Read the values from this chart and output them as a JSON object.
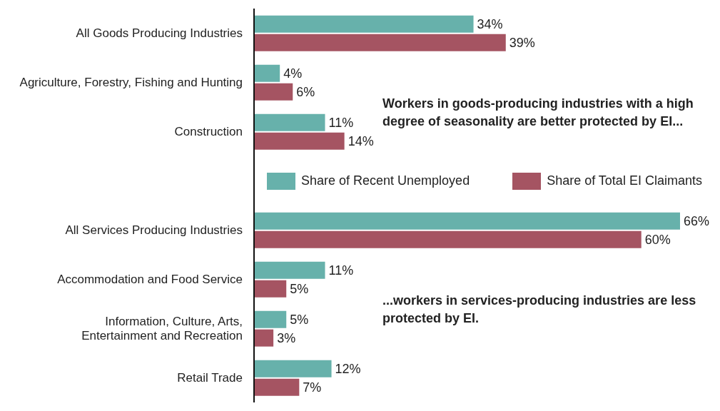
{
  "chart_data": {
    "type": "bar",
    "orientation": "horizontal",
    "legend": "right",
    "categories": [
      "All Goods Producing Industries",
      "Agriculture, Forestry, Fishing and Hunting",
      "Construction",
      null,
      "All Services Producing Industries",
      "Accommodation and Food Service",
      "Information, Culture, Arts, Entertainment and Recreation",
      "Retail Trade"
    ],
    "series": [
      {
        "name": "Share of Recent Unemployed",
        "color": "#67b1ab",
        "values": [
          34,
          4,
          11,
          null,
          66,
          11,
          5,
          12
        ],
        "value_labels": [
          "34%",
          "4%",
          "11%",
          null,
          "66%",
          "11%",
          "5%",
          "12%"
        ]
      },
      {
        "name": "Share of Total EI Claimants",
        "color": "#a55462",
        "values": [
          39,
          6,
          14,
          null,
          60,
          5,
          3,
          7
        ],
        "value_labels": [
          "39%",
          "6%",
          "14%",
          null,
          "60%",
          "5%",
          "3%",
          "7%"
        ]
      }
    ],
    "annotations": [
      "Workers in goods-producing industries with a high degree of seasonality are better protected by EI...",
      "...workers in services-producing industries are less protected by EI."
    ]
  }
}
